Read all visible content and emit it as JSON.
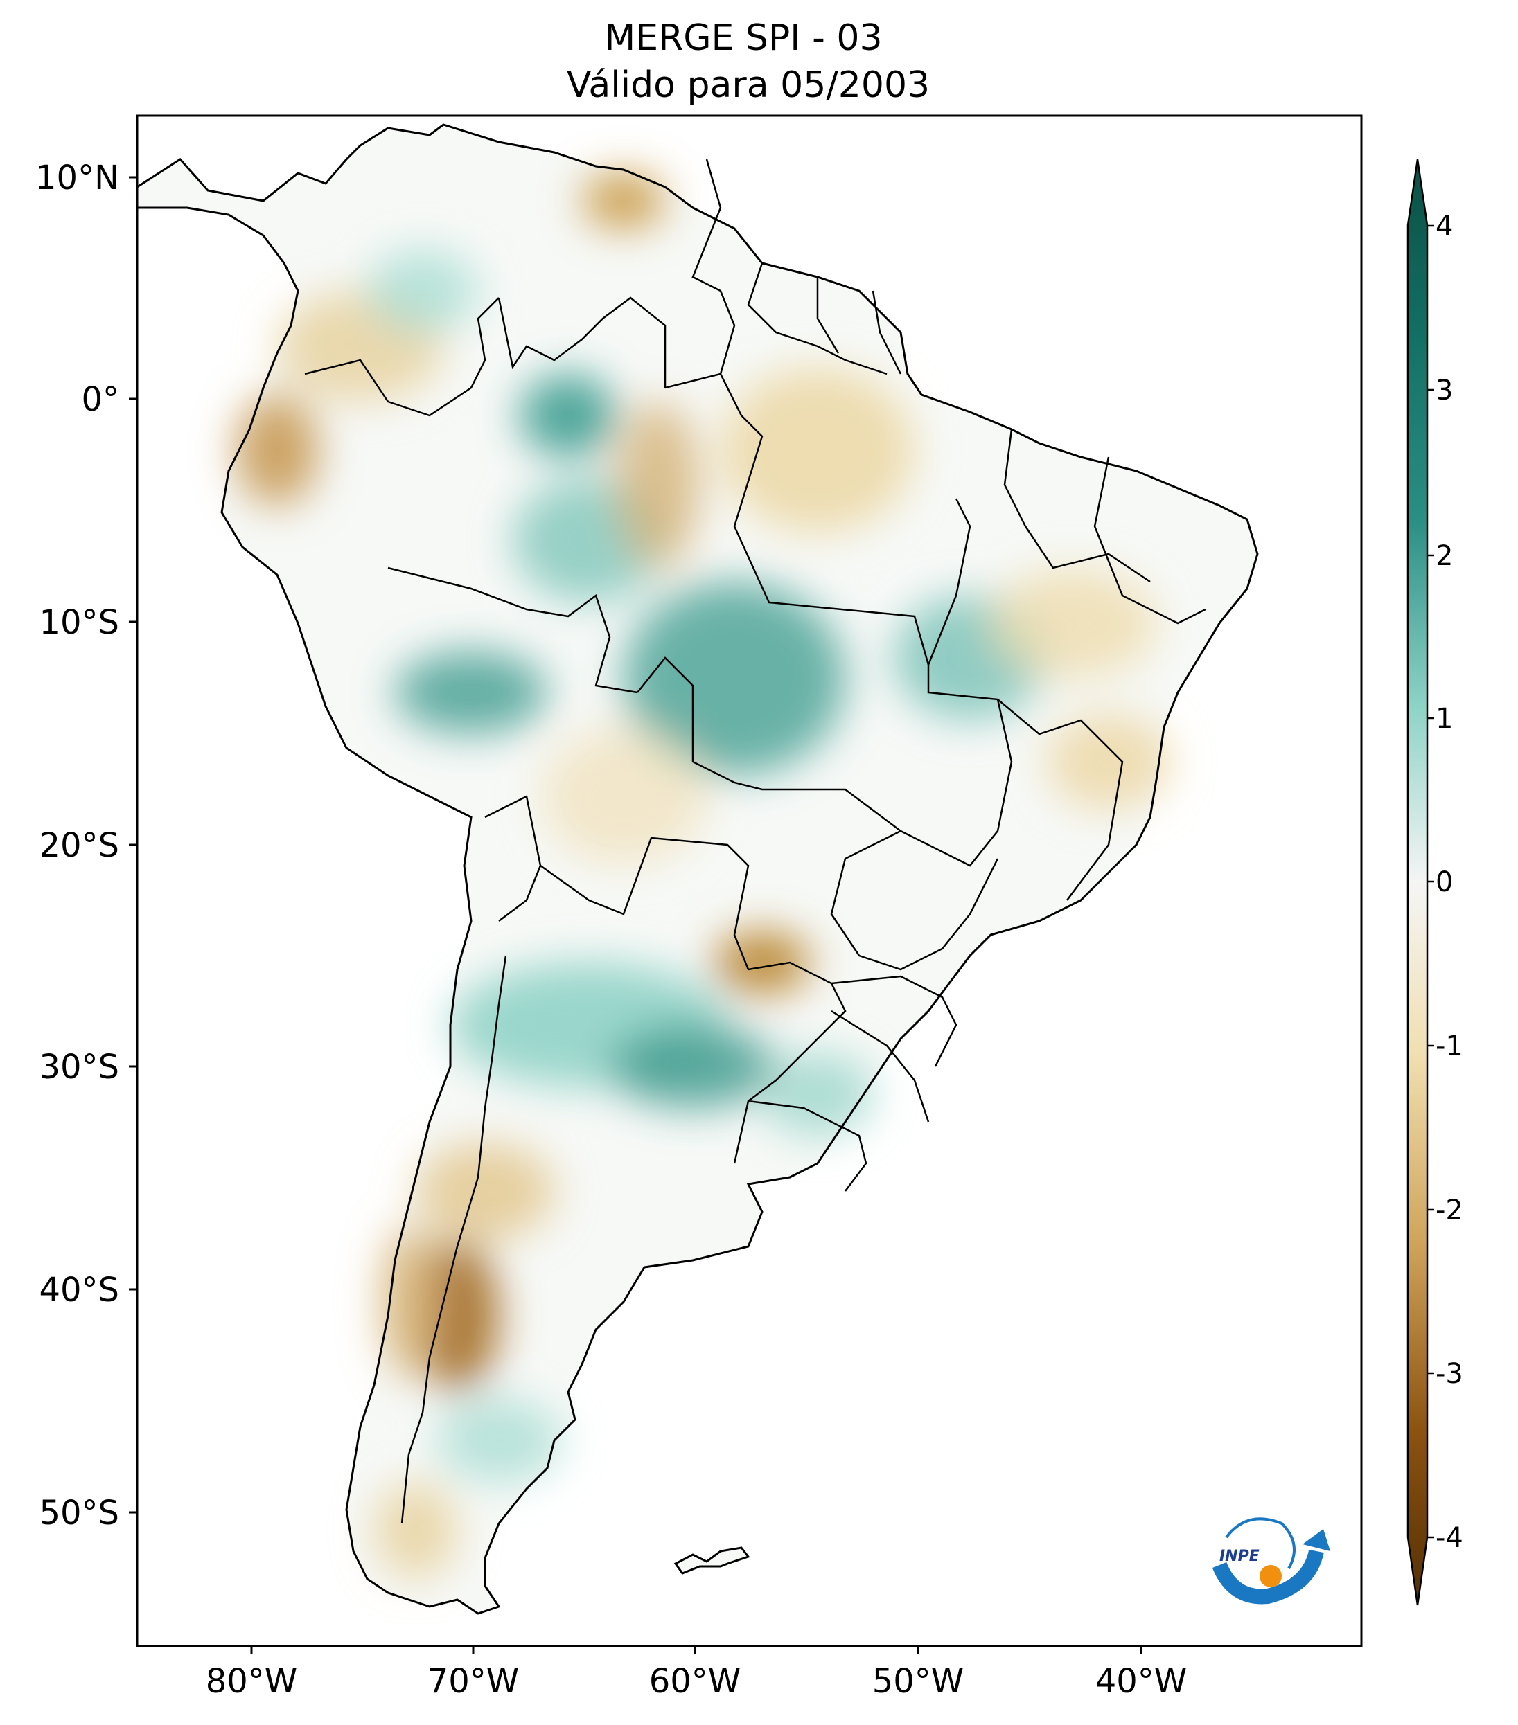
{
  "title": {
    "line1": "MERGE   SPI - 03",
    "line2": "Válido para 05/2003"
  },
  "axes": {
    "lat_ticks": [
      "10°N",
      "0°",
      "10°S",
      "20°S",
      "30°S",
      "40°S",
      "50°S"
    ],
    "lon_ticks": [
      "80°W",
      "70°W",
      "60°W",
      "50°W",
      "40°W"
    ]
  },
  "colorbar": {
    "ticks": [
      "4",
      "3",
      "2",
      "1",
      "0",
      "-1",
      "-2",
      "-3",
      "-4"
    ],
    "colors": [
      "#0a4f44",
      "#2b8f84",
      "#8fd3c7",
      "#f5f5f5",
      "#e8d09a",
      "#b8822c",
      "#543005"
    ]
  },
  "logo": {
    "text": "INPE"
  }
}
